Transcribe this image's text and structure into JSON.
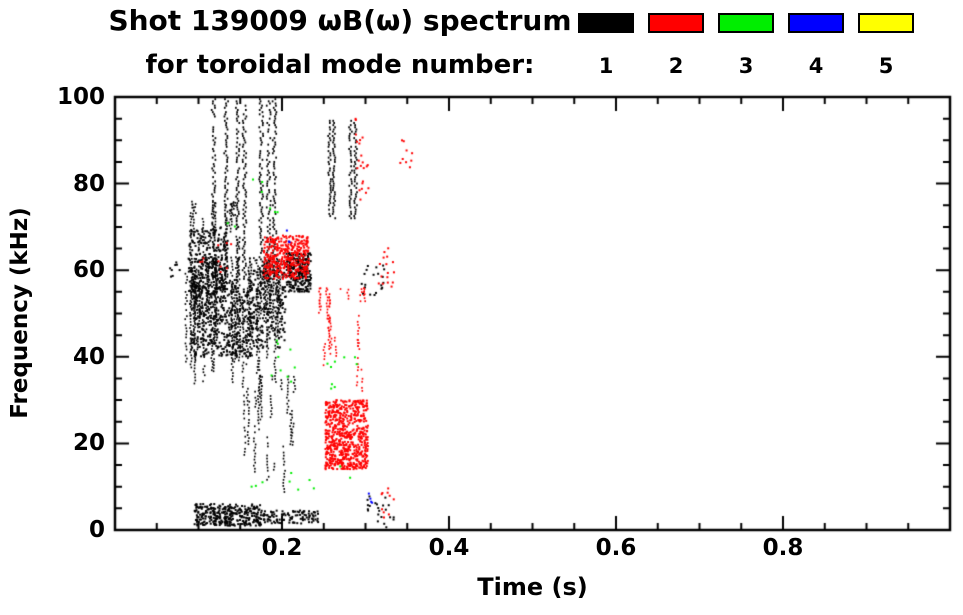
{
  "title": {
    "line1": "Shot 139009 ωB(ω) spectrum",
    "line2": "for toroidal mode number:"
  },
  "legend": {
    "items": [
      {
        "label": "1",
        "color": "#000000"
      },
      {
        "label": "2",
        "color": "#ff0000"
      },
      {
        "label": "3",
        "color": "#00ee00"
      },
      {
        "label": "4",
        "color": "#0000ff"
      },
      {
        "label": "5",
        "color": "#ffff00"
      }
    ]
  },
  "chart_data": {
    "type": "scatter",
    "title": "Shot 139009 ωB(ω) spectrum for toroidal mode number: 1-5",
    "xlabel": "Time (s)",
    "ylabel": "Frequency (kHz)",
    "xlim": [
      0,
      1.0
    ],
    "ylim": [
      0,
      100
    ],
    "x_major_ticks": [
      0.2,
      0.4,
      0.6,
      0.8
    ],
    "y_major_ticks": [
      0,
      20,
      40,
      60,
      80,
      100
    ],
    "x_minor_step": 0.05,
    "y_minor_step": 5,
    "grid": false,
    "legend_position": "top-right",
    "modes": [
      {
        "n": 1,
        "color": "#000000"
      },
      {
        "n": 2,
        "color": "#ff0000"
      },
      {
        "n": 3,
        "color": "#00ee00"
      },
      {
        "n": 4,
        "color": "#0000ff"
      },
      {
        "n": 5,
        "color": "#ffff00"
      }
    ],
    "clusters": [
      {
        "mode": 1,
        "style": "cloud",
        "t": [
          0.09,
          0.165
        ],
        "f": [
          40,
          58
        ],
        "n": 450
      },
      {
        "mode": 1,
        "style": "cloud",
        "t": [
          0.088,
          0.135
        ],
        "f": [
          55,
          70
        ],
        "n": 260
      },
      {
        "mode": 1,
        "style": "cloud",
        "t": [
          0.16,
          0.205
        ],
        "f": [
          42,
          60
        ],
        "n": 220
      },
      {
        "mode": 1,
        "style": "streaks",
        "t": [
          0.085,
          0.205
        ],
        "f": [
          33,
          63
        ],
        "n": 70,
        "seg": [
          6,
          22
        ]
      },
      {
        "mode": 1,
        "style": "streaks",
        "t": [
          0.09,
          0.15
        ],
        "f": [
          62,
          76
        ],
        "n": 18,
        "seg": [
          3,
          10
        ]
      },
      {
        "mode": 1,
        "style": "spikes",
        "t_list": [
          0.118,
          0.133,
          0.147,
          0.155,
          0.175,
          0.184,
          0.191
        ],
        "f": [
          58,
          101
        ],
        "jitter": 2
      },
      {
        "mode": 1,
        "style": "spikes",
        "t_list": [
          0.257,
          0.262,
          0.282,
          0.288
        ],
        "f": [
          72,
          95
        ],
        "jitter": 1.5
      },
      {
        "mode": 1,
        "style": "cloud",
        "t": [
          0.205,
          0.235
        ],
        "f": [
          55,
          64
        ],
        "n": 260
      },
      {
        "mode": 1,
        "style": "streaks",
        "t": [
          0.155,
          0.215
        ],
        "f": [
          8,
          36
        ],
        "n": 22,
        "seg": [
          3,
          12
        ]
      },
      {
        "mode": 1,
        "style": "cloud",
        "t": [
          0.095,
          0.175
        ],
        "f": [
          1,
          6
        ],
        "n": 320
      },
      {
        "mode": 1,
        "style": "cloud",
        "t": [
          0.175,
          0.245
        ],
        "f": [
          1.5,
          4.5
        ],
        "n": 110
      },
      {
        "mode": 1,
        "style": "points",
        "t": [
          0.3,
          0.335
        ],
        "f": [
          0.5,
          8
        ],
        "n": 22
      },
      {
        "mode": 1,
        "style": "points",
        "t": [
          0.295,
          0.325
        ],
        "f": [
          54,
          62
        ],
        "n": 20
      },
      {
        "mode": 1,
        "style": "points",
        "t": [
          0.066,
          0.08
        ],
        "f": [
          58,
          62
        ],
        "n": 8
      },
      {
        "mode": 2,
        "style": "cloud",
        "t": [
          0.252,
          0.303
        ],
        "f": [
          14,
          30
        ],
        "n": 650
      },
      {
        "mode": 2,
        "style": "cloud",
        "t": [
          0.178,
          0.232
        ],
        "f": [
          58,
          68
        ],
        "n": 380
      },
      {
        "mode": 2,
        "style": "streaks",
        "t": [
          0.245,
          0.3
        ],
        "f": [
          30,
          56
        ],
        "n": 18,
        "seg": [
          4,
          14
        ]
      },
      {
        "mode": 2,
        "style": "points",
        "t": [
          0.288,
          0.305
        ],
        "f": [
          76,
          95
        ],
        "n": 22
      },
      {
        "mode": 2,
        "style": "points",
        "t": [
          0.34,
          0.356
        ],
        "f": [
          82,
          90
        ],
        "n": 9
      },
      {
        "mode": 2,
        "style": "points",
        "t": [
          0.315,
          0.335
        ],
        "f": [
          55,
          66
        ],
        "n": 16
      },
      {
        "mode": 2,
        "style": "points",
        "t": [
          0.1,
          0.14
        ],
        "f": [
          58,
          67
        ],
        "n": 10
      },
      {
        "mode": 2,
        "style": "points",
        "t": [
          0.318,
          0.336
        ],
        "f": [
          2,
          10
        ],
        "n": 10
      },
      {
        "mode": 3,
        "style": "points",
        "t": [
          0.13,
          0.2
        ],
        "f": [
          70,
          82
        ],
        "n": 8
      },
      {
        "mode": 3,
        "style": "points",
        "t": [
          0.185,
          0.225
        ],
        "f": [
          33,
          46
        ],
        "n": 9
      },
      {
        "mode": 3,
        "style": "points",
        "t": [
          0.25,
          0.29
        ],
        "f": [
          28,
          40
        ],
        "n": 9
      },
      {
        "mode": 3,
        "style": "points",
        "t": [
          0.15,
          0.285
        ],
        "f": [
          9,
          15
        ],
        "n": 10
      },
      {
        "mode": 4,
        "style": "points",
        "t": [
          0.3,
          0.315
        ],
        "f": [
          6,
          10
        ],
        "n": 4
      },
      {
        "mode": 4,
        "style": "points",
        "t": [
          0.205,
          0.215
        ],
        "f": [
          66,
          70
        ],
        "n": 3
      }
    ]
  }
}
